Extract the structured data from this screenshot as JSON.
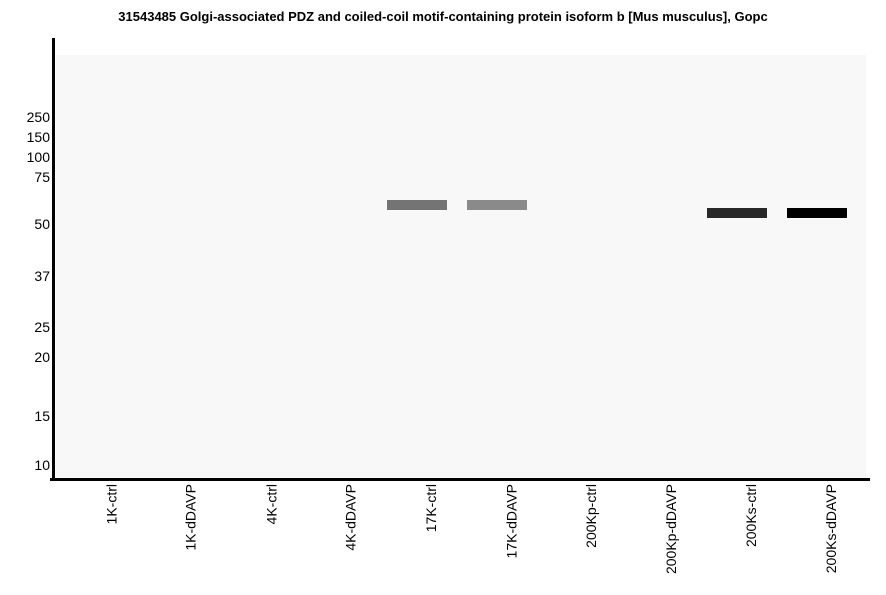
{
  "title": "31543485 Golgi-associated PDZ and coiled-coil motif-containing protein isoform b [Mus musculus], Gopc",
  "colors": {
    "page_background": "#ffffff",
    "plot_background": "#f8f8f8",
    "axis": "#000000",
    "text": "#000000"
  },
  "chart_data": {
    "type": "scatter",
    "variant": "western_blot_gel_bands",
    "title": "31543485 Golgi-associated PDZ and coiled-coil motif-containing protein isoform b [Mus musculus], Gopc",
    "xlabel": "",
    "ylabel": "",
    "x_categories": [
      "1K-ctrl",
      "1K-dDAVP",
      "4K-ctrl",
      "4K-dDAVP",
      "17K-ctrl",
      "17K-dDAVP",
      "200Kp-ctrl",
      "200Kp-dDAVP",
      "200Ks-ctrl",
      "200Ks-dDAVP"
    ],
    "y_tick_labels_kda": [
      250,
      150,
      100,
      75,
      50,
      37,
      25,
      20,
      15,
      10
    ],
    "y_scale": "molecular weight in kDa, decreasing downward (gel migration)",
    "ylim": [
      10,
      250
    ],
    "grid": false,
    "legend": false,
    "bands": [
      {
        "lane": "17K-ctrl",
        "lane_index": 4,
        "mw_kda": 59,
        "color": "#747474"
      },
      {
        "lane": "17K-dDAVP",
        "lane_index": 5,
        "mw_kda": 59,
        "color": "#8a8a8a"
      },
      {
        "lane": "200Ks-ctrl",
        "lane_index": 8,
        "mw_kda": 55,
        "color": "#282828"
      },
      {
        "lane": "200Ks-dDAVP",
        "lane_index": 9,
        "mw_kda": 55,
        "color": "#000000"
      }
    ]
  }
}
